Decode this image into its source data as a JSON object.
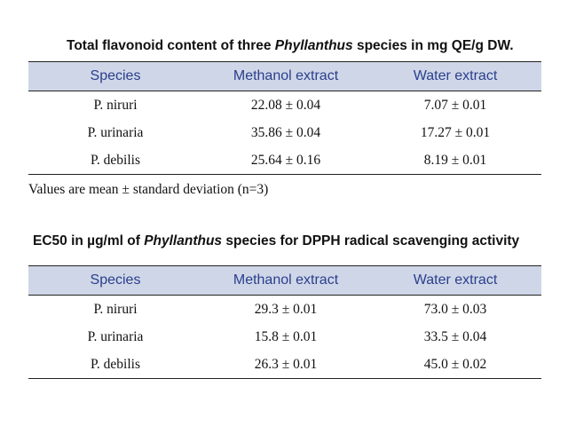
{
  "colors": {
    "header_band": "#cfd6e8",
    "header_text": "#2a3f8c",
    "body_text": "#111111",
    "rule": "#222222"
  },
  "table1": {
    "caption_before": "Total flavonoid content of three ",
    "caption_italic": "Phyllanthus",
    "caption_after": " species in mg QE/g DW.",
    "headers": [
      "Species",
      "Methanol extract",
      "Water extract"
    ],
    "rows": [
      [
        "P. niruri",
        "22.08 ± 0.04",
        "7.07 ± 0.01"
      ],
      [
        "P. urinaria",
        "35.86 ± 0.04",
        "17.27 ± 0.01"
      ],
      [
        "P. debilis",
        "25.64 ± 0.16",
        "8.19 ± 0.01"
      ]
    ],
    "note": "Values are mean ± standard deviation (n=3)"
  },
  "table2": {
    "caption_before": "EC50 in µg/ml of ",
    "caption_italic": "Phyllanthus",
    "caption_after": " species for DPPH radical scavenging  activity",
    "headers": [
      "Species",
      "Methanol extract",
      "Water extract"
    ],
    "rows": [
      [
        "P. niruri",
        "29.3 ± 0.01",
        "73.0 ± 0.03"
      ],
      [
        "P. urinaria",
        "15.8 ± 0.01",
        "33.5 ± 0.04"
      ],
      [
        "P. debilis",
        "26.3 ± 0.01",
        "45.0 ± 0.02"
      ]
    ]
  }
}
